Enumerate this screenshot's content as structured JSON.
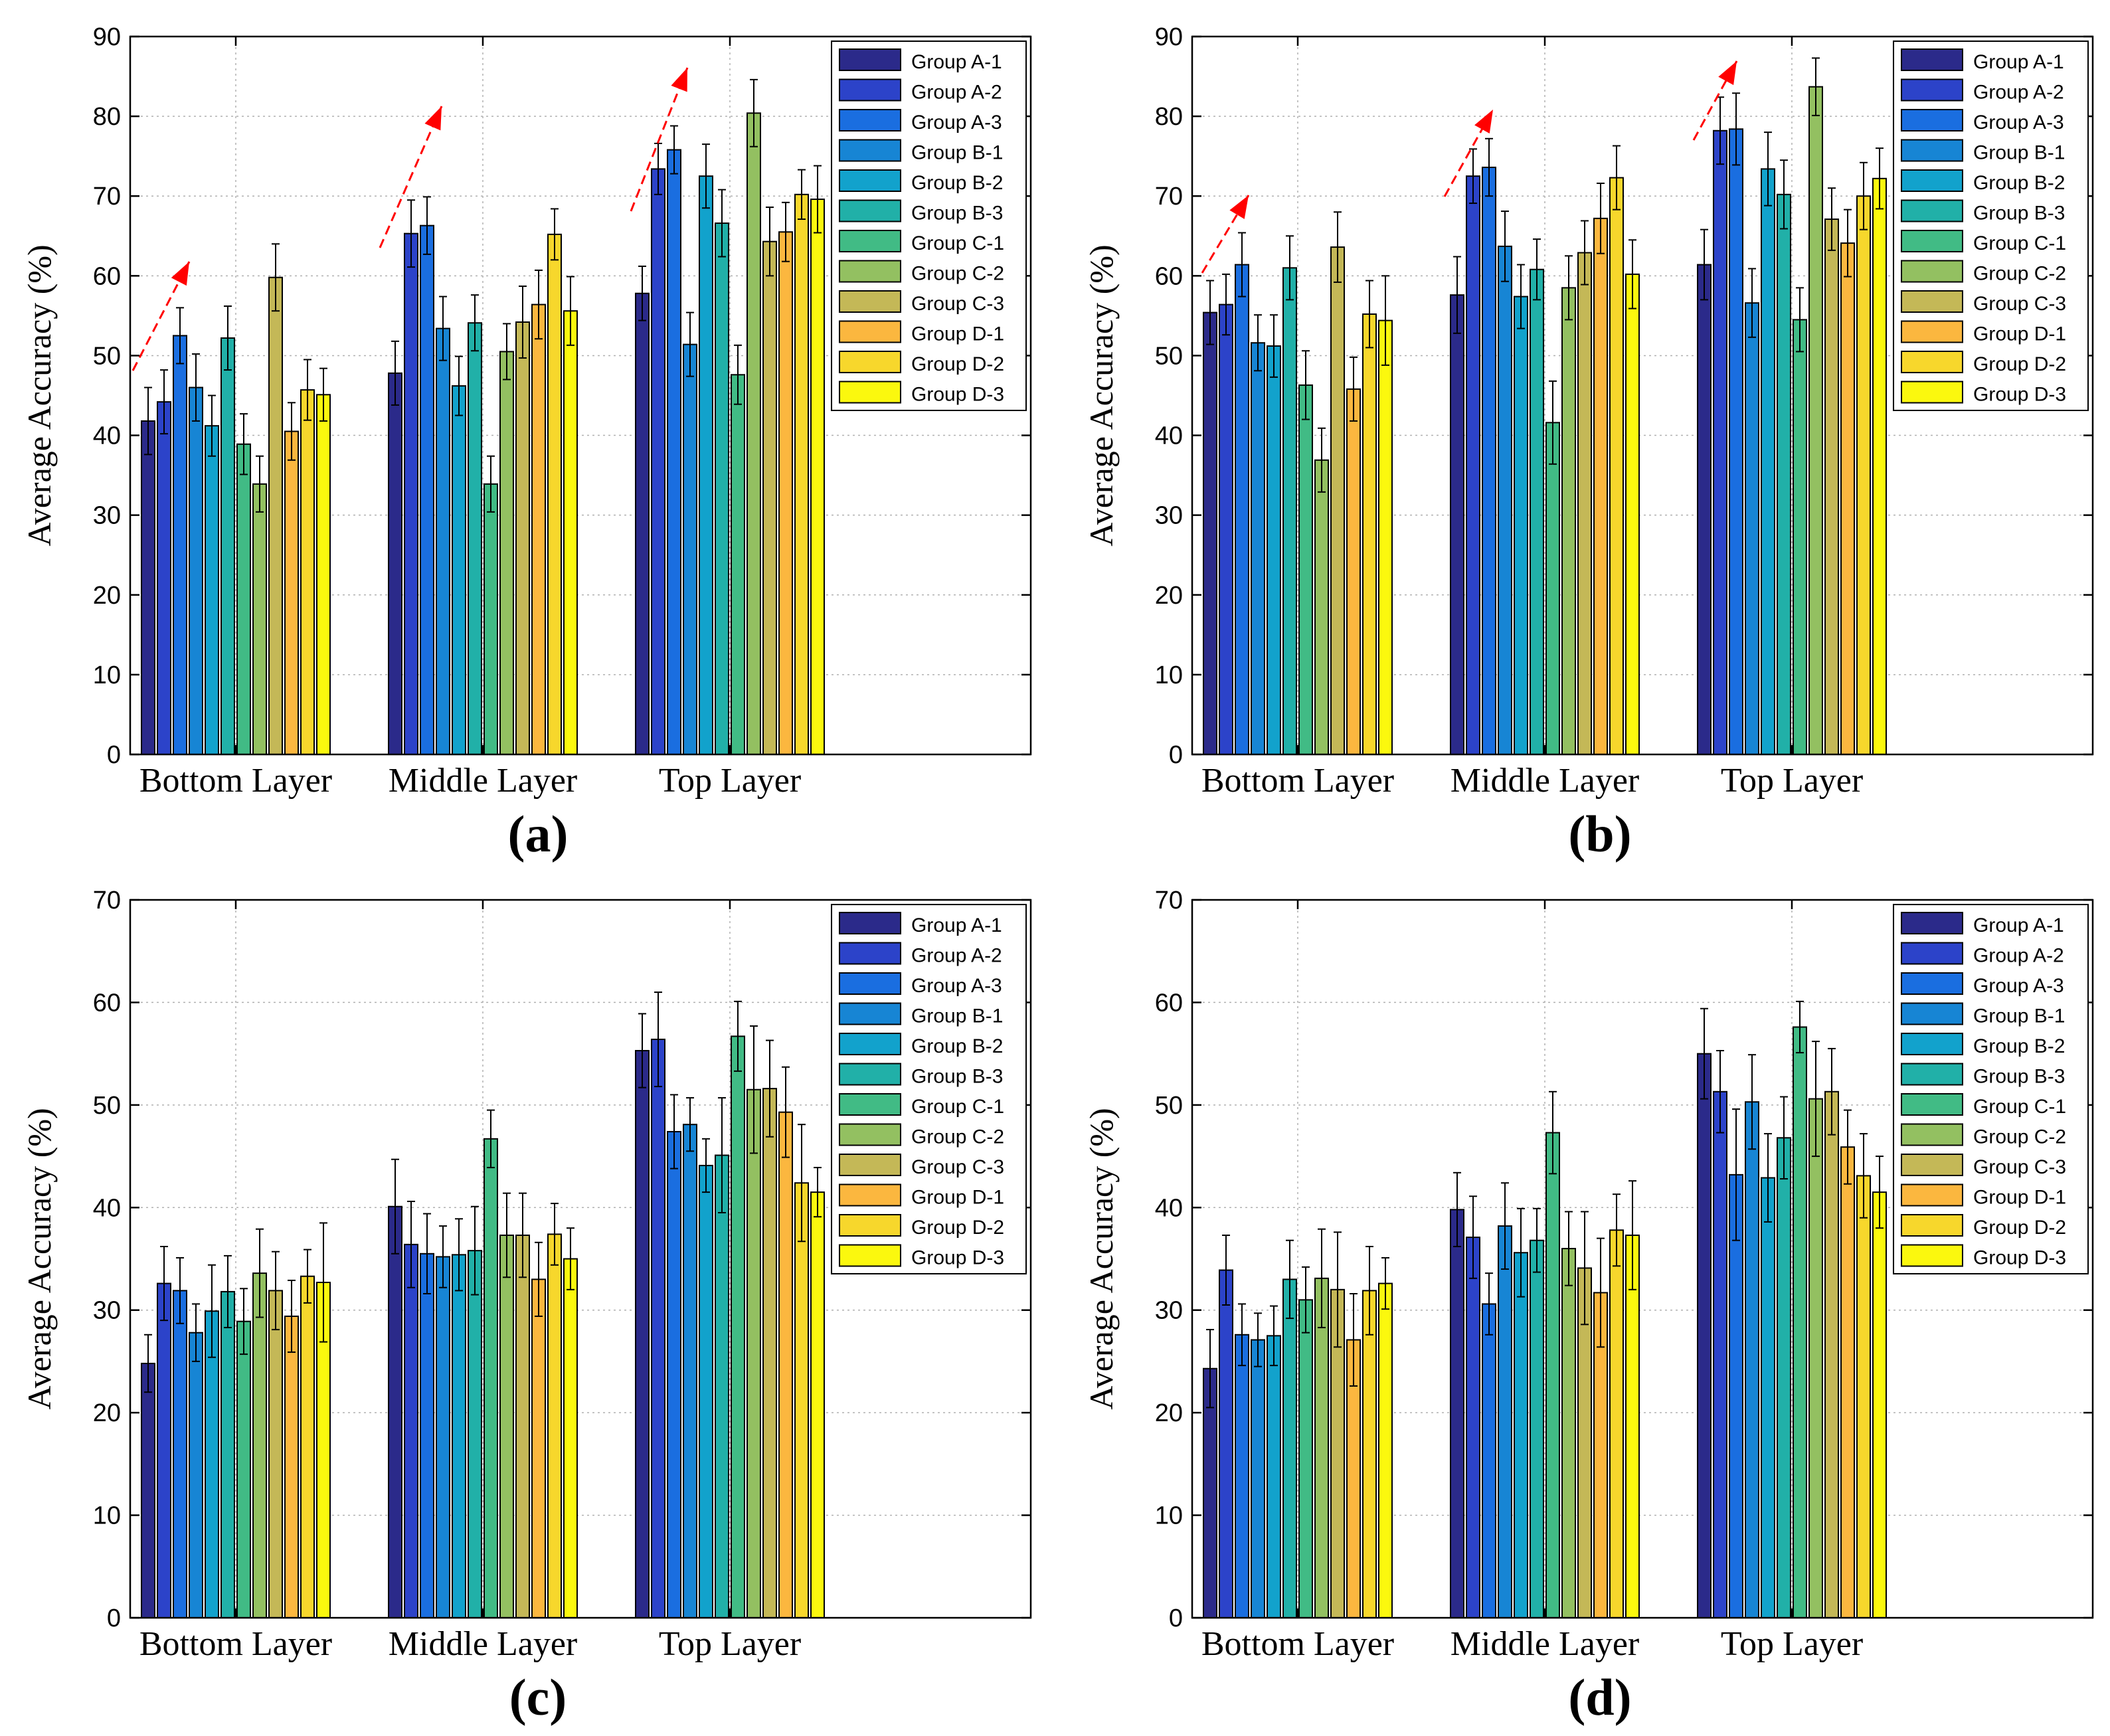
{
  "groups": [
    "Group A-1",
    "Group A-2",
    "Group A-3",
    "Group B-1",
    "Group B-2",
    "Group B-3",
    "Group C-1",
    "Group C-2",
    "Group C-3",
    "Group D-1",
    "Group D-2",
    "Group D-3"
  ],
  "colors": [
    "#2b2a8a",
    "#2c43c9",
    "#1a6ee0",
    "#1785d4",
    "#12a2cc",
    "#21b0a8",
    "#41bb85",
    "#93c061",
    "#c4b857",
    "#fbb73f",
    "#f7d72c",
    "#fbf80e"
  ],
  "chart_data": [
    {
      "panel": "(a)",
      "type": "bar",
      "ylabel": "Average Accuracy (%)",
      "ylim": [
        0,
        90
      ],
      "yticks": [
        0,
        10,
        20,
        30,
        40,
        50,
        60,
        70,
        80,
        90
      ],
      "categories": [
        "Bottom Layer",
        "Middle Layer",
        "Top Layer"
      ],
      "values": [
        [
          41.8,
          44.2,
          52.5,
          46.0,
          41.2,
          52.2,
          38.9,
          33.9,
          59.8,
          40.5,
          45.7,
          45.1
        ],
        [
          47.8,
          65.3,
          66.3,
          53.4,
          46.2,
          54.1,
          33.9,
          50.5,
          54.2,
          56.4,
          65.2,
          55.6
        ],
        [
          57.8,
          73.4,
          75.8,
          51.4,
          72.5,
          66.6,
          47.6,
          80.4,
          64.3,
          65.5,
          70.2,
          69.6
        ]
      ],
      "errors": [
        [
          4.2,
          4.0,
          3.5,
          4.2,
          3.8,
          4.0,
          3.8,
          3.5,
          4.2,
          3.6,
          3.8,
          3.3
        ],
        [
          4.0,
          4.2,
          3.6,
          4.0,
          3.7,
          3.5,
          3.5,
          3.5,
          4.5,
          4.3,
          3.2,
          4.3
        ],
        [
          3.4,
          3.2,
          3.0,
          4.0,
          4.0,
          4.2,
          3.7,
          4.2,
          4.3,
          3.7,
          3.1,
          4.2
        ]
      ],
      "trend_arrows": true
    },
    {
      "panel": "(b)",
      "type": "bar",
      "ylabel": "Average Accuracy (%)",
      "ylim": [
        0,
        90
      ],
      "yticks": [
        0,
        10,
        20,
        30,
        40,
        50,
        60,
        70,
        80,
        90
      ],
      "categories": [
        "Bottom Layer",
        "Middle Layer",
        "Top Layer"
      ],
      "values": [
        [
          55.4,
          56.4,
          61.4,
          51.6,
          51.2,
          61.0,
          46.3,
          36.9,
          63.6,
          45.8,
          55.2,
          54.4
        ],
        [
          57.6,
          72.5,
          73.6,
          63.7,
          57.4,
          60.8,
          41.6,
          58.5,
          62.9,
          67.2,
          72.3,
          60.2
        ],
        [
          61.4,
          78.2,
          78.4,
          56.6,
          73.4,
          70.2,
          54.5,
          83.7,
          67.1,
          64.1,
          70.0,
          72.2
        ]
      ],
      "errors": [
        [
          4.0,
          3.8,
          4.0,
          3.5,
          3.9,
          4.0,
          4.3,
          4.0,
          4.4,
          4.0,
          4.2,
          5.6
        ],
        [
          4.8,
          3.4,
          3.6,
          4.4,
          4.0,
          3.8,
          5.2,
          4.0,
          4.0,
          4.4,
          4.0,
          4.3
        ],
        [
          4.4,
          4.2,
          4.5,
          4.3,
          4.6,
          4.3,
          4.0,
          3.6,
          3.9,
          4.2,
          4.2,
          3.8
        ]
      ],
      "trend_arrows": true
    },
    {
      "panel": "(c)",
      "type": "bar",
      "ylabel": "Average Accuracy (%)",
      "ylim": [
        0,
        70
      ],
      "yticks": [
        0,
        10,
        20,
        30,
        40,
        50,
        60,
        70
      ],
      "categories": [
        "Bottom Layer",
        "Middle Layer",
        "Top Layer"
      ],
      "values": [
        [
          24.8,
          32.6,
          31.9,
          27.8,
          29.9,
          31.8,
          28.9,
          33.6,
          31.9,
          29.4,
          33.3,
          32.7
        ],
        [
          40.1,
          36.4,
          35.5,
          35.2,
          35.4,
          35.8,
          46.7,
          37.3,
          37.3,
          33.0,
          37.4,
          35.0
        ],
        [
          55.3,
          56.4,
          47.4,
          48.1,
          44.1,
          45.1,
          56.7,
          51.5,
          51.6,
          49.3,
          42.4,
          41.5
        ]
      ],
      "errors": [
        [
          2.8,
          3.6,
          3.2,
          2.8,
          4.5,
          3.5,
          3.2,
          4.3,
          3.8,
          3.5,
          2.6,
          5.8
        ],
        [
          4.6,
          4.2,
          3.9,
          3.0,
          3.5,
          4.3,
          2.8,
          4.1,
          4.1,
          3.6,
          3.0,
          3.0
        ],
        [
          3.6,
          4.6,
          3.6,
          2.6,
          2.6,
          5.6,
          3.4,
          6.2,
          4.7,
          4.4,
          5.7,
          2.4
        ]
      ],
      "trend_arrows": false
    },
    {
      "panel": "(d)",
      "type": "bar",
      "ylabel": "Average Accuracy (%)",
      "ylim": [
        0,
        70
      ],
      "yticks": [
        0,
        10,
        20,
        30,
        40,
        50,
        60,
        70
      ],
      "categories": [
        "Bottom Layer",
        "Middle Layer",
        "Top Layer"
      ],
      "values": [
        [
          24.3,
          33.9,
          27.6,
          27.1,
          27.5,
          33.0,
          31.0,
          33.1,
          32.0,
          27.1,
          31.9,
          32.6
        ],
        [
          39.8,
          37.1,
          30.6,
          38.2,
          35.6,
          36.8,
          47.3,
          36.0,
          34.1,
          31.7,
          37.8,
          37.3
        ],
        [
          55.0,
          51.3,
          43.2,
          50.3,
          42.9,
          46.8,
          57.6,
          50.6,
          51.3,
          45.9,
          43.1,
          41.5
        ]
      ],
      "errors": [
        [
          3.8,
          3.4,
          3.0,
          2.6,
          2.9,
          3.8,
          3.2,
          4.8,
          5.6,
          4.5,
          4.3,
          2.5
        ],
        [
          3.6,
          4.0,
          3.0,
          4.2,
          4.3,
          3.1,
          4.0,
          3.6,
          5.5,
          5.3,
          3.5,
          5.3
        ],
        [
          4.4,
          4.0,
          6.4,
          4.6,
          4.3,
          4.0,
          2.5,
          5.6,
          4.2,
          3.6,
          4.1,
          3.5
        ]
      ],
      "trend_arrows": false
    }
  ]
}
